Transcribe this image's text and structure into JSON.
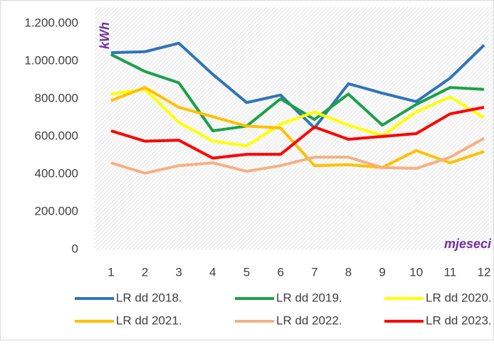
{
  "chart_data": {
    "type": "line",
    "categories": [
      "1",
      "2",
      "3",
      "4",
      "5",
      "6",
      "7",
      "8",
      "9",
      "10",
      "11",
      "12"
    ],
    "y_annotation": "kWh",
    "x_annotation": "mjeseci",
    "ylim": [
      0,
      1200000
    ],
    "yticks": [
      0,
      {
        "value": 200000,
        "label": "200.000"
      },
      {
        "value": 400000,
        "label": "400.000"
      },
      {
        "value": 600000,
        "label": "600.000"
      },
      {
        "value": 800000,
        "label": "800.000"
      },
      {
        "value": 1000000,
        "label": "1.000.000"
      },
      {
        "value": 1200000,
        "label": "1.200.000"
      }
    ],
    "legend": "bottom",
    "series": [
      {
        "name": "LR dd 2018.",
        "color": "#2e75b6",
        "values": [
          1045000,
          1050000,
          1095000,
          930000,
          780000,
          820000,
          645000,
          880000,
          830000,
          785000,
          910000,
          1085000
        ]
      },
      {
        "name": "LR dd 2019.",
        "color": "#1aa14a",
        "values": [
          1035000,
          945000,
          885000,
          630000,
          655000,
          800000,
          690000,
          825000,
          660000,
          770000,
          860000,
          850000
        ]
      },
      {
        "name": "LR dd 2020.",
        "color": "#ffff00",
        "values": [
          825000,
          850000,
          675000,
          575000,
          550000,
          665000,
          730000,
          660000,
          605000,
          730000,
          810000,
          700000
        ]
      },
      {
        "name": "LR dd 2021.",
        "color": "#ffc000",
        "values": [
          790000,
          860000,
          755000,
          705000,
          655000,
          645000,
          445000,
          450000,
          435000,
          525000,
          460000,
          520000
        ]
      },
      {
        "name": "LR dd 2022.",
        "color": "#f4b183",
        "values": [
          460000,
          405000,
          445000,
          460000,
          415000,
          445000,
          490000,
          490000,
          435000,
          430000,
          490000,
          590000
        ]
      },
      {
        "name": "LR dd 2023.",
        "color": "#ff0000",
        "values": [
          630000,
          575000,
          580000,
          485000,
          505000,
          505000,
          650000,
          585000,
          600000,
          615000,
          720000,
          755000
        ]
      }
    ]
  }
}
